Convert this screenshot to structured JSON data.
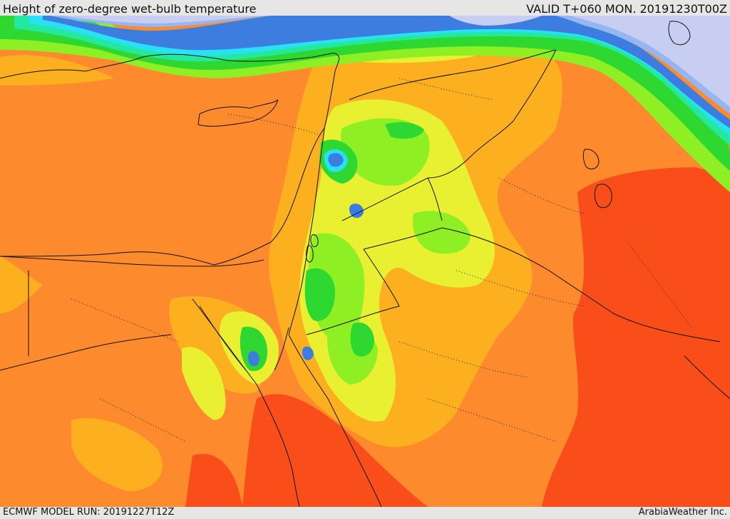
{
  "header": {
    "title": "Height of zero-degree wet-bulb temperature",
    "valid_time": "VALID T+060 MON. 20191230T00Z"
  },
  "footer": {
    "model_run": "ECMWF MODEL RUN: 20191227T12Z",
    "credit": "ArabiaWeather Inc."
  },
  "colors": {
    "very_high": "#f94e1a",
    "high": "#fd8a2d",
    "mid_high": "#fcb020",
    "mid": "#e8f031",
    "mid_low": "#8ef024",
    "low": "#2ed830",
    "lower": "#25e8a0",
    "cyan": "#2ae0f6",
    "blue": "#3d7de0",
    "light_blue": "#95b6f0",
    "snow": "#c8cdf2",
    "coast": "#111111"
  }
}
